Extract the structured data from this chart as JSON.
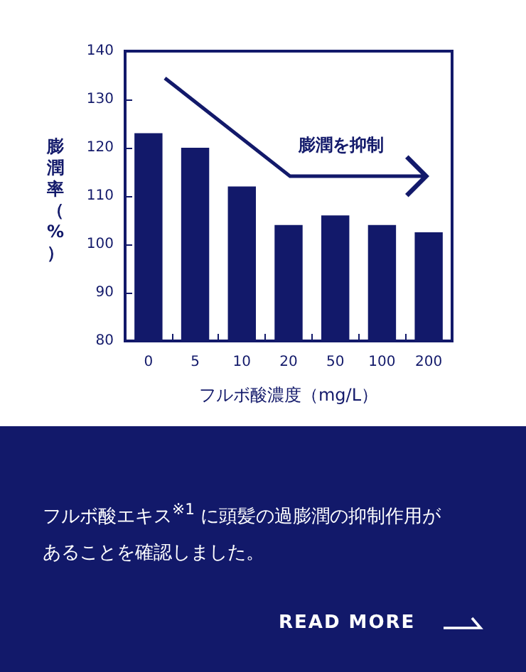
{
  "chart_data": {
    "type": "bar",
    "xlabel": "フルボ酸濃度（mg/L）",
    "ylabel": "膨潤率（%）",
    "categories": [
      "0",
      "5",
      "10",
      "20",
      "50",
      "100",
      "200"
    ],
    "values": [
      123,
      120,
      112,
      104,
      106,
      104,
      102.5
    ],
    "color": "#12196a",
    "ylim": [
      80,
      140
    ],
    "yticks": [
      80,
      90,
      100,
      110,
      120,
      130,
      140
    ],
    "grid": false,
    "annotations": [
      "膨潤を抑制",
      "フルボ酸エキス$^{※1}$ に頭髪の過膨潤の抑制作用があることを確認しました。",
      "READ MORE"
    ]
  }
}
